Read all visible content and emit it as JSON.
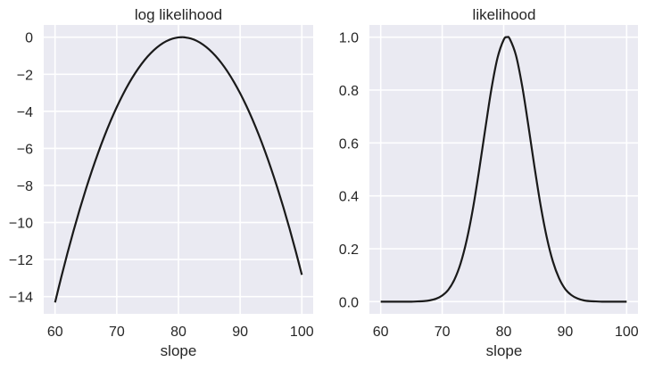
{
  "chart_data": [
    {
      "type": "line",
      "title": "log likelihood",
      "xlabel": "slope",
      "ylabel": "",
      "xlim": [
        58.16,
        101.84
      ],
      "ylim": [
        -14.93,
        0.66
      ],
      "xticks": [
        60,
        70,
        80,
        90,
        100
      ],
      "xtick_labels": [
        "60",
        "70",
        "80",
        "90",
        "100"
      ],
      "yticks": [
        0,
        -2,
        -4,
        -6,
        -8,
        -10,
        -12,
        -14
      ],
      "ytick_labels": [
        "0",
        "−2",
        "−4",
        "−6",
        "−8",
        "−10",
        "−12",
        "−14"
      ],
      "grid": true,
      "line_color": "#1a1a1a",
      "x": [
        60,
        61,
        62,
        63,
        64,
        65,
        66,
        67,
        68,
        69,
        70,
        71,
        72,
        73,
        74,
        75,
        76,
        77,
        78,
        79,
        80,
        80.55,
        81,
        82,
        83,
        84,
        85,
        86,
        87,
        88,
        89,
        90,
        91,
        92,
        93,
        94,
        95,
        96,
        97,
        98,
        99,
        100
      ],
      "y": [
        -14.315,
        -12.956,
        -11.664,
        -10.441,
        -9.285,
        -8.197,
        -7.176,
        -6.224,
        -5.339,
        -4.522,
        -3.773,
        -3.092,
        -2.478,
        -1.932,
        -1.454,
        -1.044,
        -0.702,
        -0.427,
        -0.22,
        -0.081,
        -0.01,
        0,
        -0.007,
        -0.071,
        -0.203,
        -0.403,
        -0.671,
        -1.007,
        -1.41,
        -1.881,
        -2.42,
        -3.027,
        -3.702,
        -4.444,
        -5.254,
        -6.132,
        -7.078,
        -8.092,
        -9.173,
        -10.322,
        -11.539,
        -12.824
      ]
    },
    {
      "type": "line",
      "title": "likelihood",
      "xlabel": "slope",
      "ylabel": "",
      "xlim": [
        58.16,
        101.84
      ],
      "ylim": [
        -0.046,
        1.046
      ],
      "xticks": [
        60,
        70,
        80,
        90,
        100
      ],
      "xtick_labels": [
        "60",
        "70",
        "80",
        "90",
        "100"
      ],
      "yticks": [
        0,
        0.2,
        0.4,
        0.6,
        0.8,
        1.0
      ],
      "ytick_labels": [
        "0.0",
        "0.2",
        "0.4",
        "0.6",
        "0.8",
        "1.0"
      ],
      "grid": true,
      "line_color": "#1a1a1a",
      "x": [
        60,
        61,
        62,
        63,
        64,
        65,
        66,
        67,
        68,
        69,
        70,
        71,
        72,
        73,
        74,
        75,
        76,
        77,
        78,
        79,
        80,
        80.55,
        81,
        82,
        83,
        84,
        85,
        86,
        87,
        88,
        89,
        90,
        91,
        92,
        93,
        94,
        95,
        96,
        97,
        98,
        99,
        100
      ],
      "y": [
        0,
        0,
        0,
        0,
        0,
        0,
        0.001,
        0.002,
        0.005,
        0.011,
        0.023,
        0.045,
        0.084,
        0.145,
        0.234,
        0.352,
        0.496,
        0.652,
        0.803,
        0.922,
        0.99,
        1.0,
        0.993,
        0.931,
        0.816,
        0.668,
        0.511,
        0.365,
        0.244,
        0.152,
        0.089,
        0.048,
        0.025,
        0.012,
        0.005,
        0.002,
        0.001,
        0,
        0,
        0,
        0,
        0
      ]
    }
  ]
}
